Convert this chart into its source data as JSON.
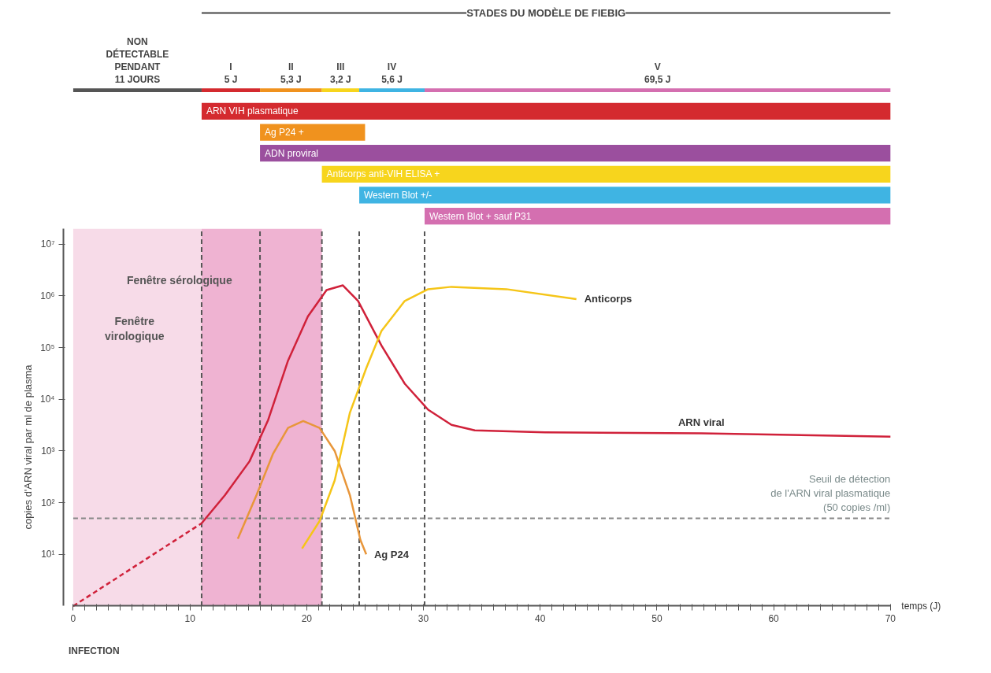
{
  "chart_data": [
    {
      "type": "bar",
      "orientation": "horizontal",
      "stacked": true,
      "title": "STADES DU MODÈLE DE FIEBIG",
      "xlim": [
        0,
        70
      ],
      "tick_labels": false,
      "categories": [
        null
      ],
      "series": [
        {
          "name": "NON\nDÉTECTABLE\nPENDANT\n11 JOURS",
          "color": "#555555",
          "values": [
            11
          ]
        },
        {
          "name": "I\n5 J",
          "color": "#d42a2f",
          "values": [
            5
          ]
        },
        {
          "name": "II\n5,3 J",
          "color": "#f0921e",
          "values": [
            5.3
          ]
        },
        {
          "name": "III\n3,2 J",
          "color": "#f7d51d",
          "values": [
            3.2
          ]
        },
        {
          "name": "IV\n5,6 J",
          "color": "#3fb4e3",
          "values": [
            5.6
          ]
        },
        {
          "name": "V\n69,5 J",
          "color": "#d46fb0",
          "values": [
            39.9
          ]
        }
      ]
    },
    {
      "type": "bar",
      "orientation": "horizontal",
      "xlim": [
        0,
        70
      ],
      "tick_labels": false,
      "categories": [
        "ARN VIH plasmatique",
        "Ag P24 +",
        "ADN proviral",
        "Anticorps anti-VIH ELISA +",
        "Western Blot +/-",
        "Western Blot + sauf P31"
      ],
      "base": [
        11,
        16,
        16,
        21.3,
        24.5,
        30.1
      ],
      "values": [
        59,
        9,
        54,
        48.7,
        45.5,
        39.9
      ],
      "colors": [
        "#d42a2f",
        "#f0921e",
        "#9b4f9e",
        "#f7d51d",
        "#3fb4e3",
        "#d46fb0"
      ]
    },
    {
      "type": "line",
      "xlabel": "temps (J)",
      "ylabel": "copies d'ARN viral par ml de plasma",
      "log": true,
      "grid": false,
      "xlim": [
        0,
        70
      ],
      "ylim": [
        1,
        20000000
      ],
      "xticks": [
        0,
        {
          "value": 1,
          "label": null
        },
        {
          "value": 2,
          "label": null
        },
        {
          "value": 3,
          "label": null
        },
        {
          "value": 4,
          "label": null
        },
        {
          "value": 5,
          "label": null
        },
        {
          "value": 6,
          "label": null
        },
        {
          "value": 7,
          "label": null
        },
        {
          "value": 8,
          "label": null
        },
        {
          "value": 9,
          "label": null
        },
        10,
        {
          "value": 11,
          "label": null
        },
        {
          "value": 12,
          "label": null
        },
        {
          "value": 13,
          "label": null
        },
        {
          "value": 14,
          "label": null
        },
        {
          "value": 15,
          "label": null
        },
        {
          "value": 16,
          "label": null
        },
        {
          "value": 17,
          "label": null
        },
        {
          "value": 18,
          "label": null
        },
        {
          "value": 19,
          "label": null
        },
        20,
        {
          "value": 21,
          "label": null
        },
        {
          "value": 22,
          "label": null
        },
        {
          "value": 23,
          "label": null
        },
        {
          "value": 24,
          "label": null
        },
        {
          "value": 25,
          "label": null
        },
        {
          "value": 26,
          "label": null
        },
        {
          "value": 27,
          "label": null
        },
        {
          "value": 28,
          "label": null
        },
        {
          "value": 29,
          "label": null
        },
        30,
        {
          "value": 31,
          "label": null
        },
        {
          "value": 32,
          "label": null
        },
        {
          "value": 33,
          "label": null
        },
        {
          "value": 34,
          "label": null
        },
        {
          "value": 35,
          "label": null
        },
        {
          "value": 36,
          "label": null
        },
        {
          "value": 37,
          "label": null
        },
        {
          "value": 38,
          "label": null
        },
        {
          "value": 39,
          "label": null
        },
        40,
        {
          "value": 41,
          "label": null
        },
        {
          "value": 42,
          "label": null
        },
        {
          "value": 43,
          "label": null
        },
        {
          "value": 44,
          "label": null
        },
        {
          "value": 45,
          "label": null
        },
        {
          "value": 46,
          "label": null
        },
        {
          "value": 47,
          "label": null
        },
        {
          "value": 48,
          "label": null
        },
        {
          "value": 49,
          "label": null
        },
        50,
        {
          "value": 51,
          "label": null
        },
        {
          "value": 52,
          "label": null
        },
        {
          "value": 53,
          "label": null
        },
        {
          "value": 54,
          "label": null
        },
        {
          "value": 55,
          "label": null
        },
        {
          "value": 56,
          "label": null
        },
        {
          "value": 57,
          "label": null
        },
        {
          "value": 58,
          "label": null
        },
        {
          "value": 59,
          "label": null
        },
        60,
        {
          "value": 61,
          "label": null
        },
        {
          "value": 62,
          "label": null
        },
        {
          "value": 63,
          "label": null
        },
        {
          "value": 64,
          "label": null
        },
        {
          "value": 65,
          "label": null
        },
        {
          "value": 66,
          "label": null
        },
        {
          "value": 67,
          "label": null
        },
        {
          "value": 68,
          "label": null
        },
        {
          "value": 69,
          "label": null
        },
        70
      ],
      "yticks": [
        {
          "value": 10,
          "label": "10¹"
        },
        {
          "value": 100,
          "label": "10²"
        },
        {
          "value": 1000,
          "label": "10³"
        },
        {
          "value": 10000,
          "label": "10⁴"
        },
        {
          "value": 100000,
          "label": "10⁵"
        },
        {
          "value": 1000000,
          "label": "10⁶"
        },
        {
          "value": 10000000,
          "label": "10⁷"
        }
      ],
      "series": [
        {
          "color": "#d0213a",
          "line_style": "dashed",
          "x": [
            0,
            11
          ],
          "values": [
            1,
            40
          ]
        },
        {
          "name": "ARN viral",
          "color": "#d0213a",
          "line_style": "solid",
          "x": [
            11,
            13,
            15.1,
            16.7,
            18.4,
            20.1,
            21.7,
            23.1,
            24.4,
            26.4,
            28.4,
            30.4,
            32.4,
            34.4,
            40.4,
            53.8,
            70
          ],
          "values": [
            40,
            140,
            630,
            4000,
            56000,
            400000,
            1300000,
            1600000,
            800000,
            110000,
            20000,
            6300,
            3200,
            2500,
            2300,
            2200,
            1900
          ]
        },
        {
          "name": "Ag P24",
          "color": "#e8963a",
          "line_style": "solid",
          "x": [
            14.1,
            15.7,
            17.1,
            18.4,
            19.7,
            21.1,
            22.4,
            23.7,
            24.6,
            25.1
          ],
          "values": [
            20,
            140,
            870,
            2800,
            3800,
            2800,
            1000,
            140,
            19,
            10
          ]
        },
        {
          "name": "Anticorps",
          "color": "#f5c518",
          "line_style": "solid",
          "x": [
            19.6,
            21.1,
            22.4,
            23.7,
            25.1,
            26.4,
            28.4,
            30.4,
            32.4,
            37.1,
            43.1
          ],
          "values": [
            13,
            44,
            270,
            5500,
            40000,
            210000,
            800000,
            1350000,
            1500000,
            1350000,
            870000
          ]
        }
      ],
      "bands": [
        {
          "axis": "x",
          "from": 0,
          "to": 11,
          "color": "#f7dbe8"
        },
        {
          "axis": "x",
          "from": 11,
          "to": 21.3,
          "color": "#efb3d2"
        }
      ],
      "ref_lines": [
        {
          "axis": "x",
          "value": 11,
          "color": "#555555",
          "line_style": "dashed"
        },
        {
          "axis": "x",
          "value": 16,
          "color": "#555555",
          "line_style": "dashed"
        },
        {
          "axis": "x",
          "value": 21.3,
          "color": "#555555",
          "line_style": "dashed"
        },
        {
          "axis": "x",
          "value": 24.5,
          "color": "#555555",
          "line_style": "dashed"
        },
        {
          "axis": "x",
          "value": 30.1,
          "color": "#555555",
          "line_style": "dashed"
        },
        {
          "axis": "y",
          "value": 50,
          "color": "#888888",
          "line_style": "dashed",
          "label": "Seuil de détection\nde l'ARN viral plasmatique\n(50 copies /ml)"
        }
      ],
      "annotations": [
        "Fenêtre sérologique",
        "Fenêtre\nvirologique",
        "INFECTION"
      ]
    }
  ]
}
